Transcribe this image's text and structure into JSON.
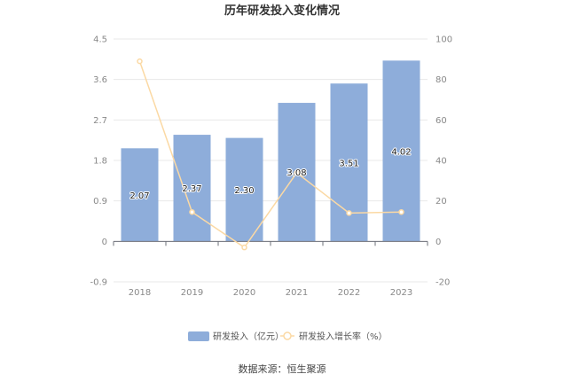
{
  "chart_data": {
    "type": "bar",
    "title": "历年研发投入变化情况",
    "categories": [
      "2018",
      "2019",
      "2020",
      "2021",
      "2022",
      "2023"
    ],
    "series": [
      {
        "name": "研发投入（亿元）",
        "kind": "bar",
        "axis": "left",
        "color": "#8eadda",
        "values": [
          2.07,
          2.37,
          2.3,
          3.08,
          3.51,
          4.02
        ],
        "labels": [
          "2.07",
          "2.37",
          "2.30",
          "3.08",
          "3.51",
          "4.02"
        ]
      },
      {
        "name": "研发投入增长率（%）",
        "kind": "line",
        "axis": "right",
        "color": "#fbd9a4",
        "values": [
          89,
          14.5,
          -3,
          33.9,
          14,
          14.5
        ]
      }
    ],
    "y_left": {
      "min": -0.9,
      "max": 4.5,
      "ticks": [
        "-0.9",
        "0",
        "0.9",
        "1.8",
        "2.7",
        "3.6",
        "4.5"
      ]
    },
    "y_right": {
      "min": -20,
      "max": 100,
      "ticks": [
        "-20",
        "0",
        "20",
        "40",
        "60",
        "80",
        "100"
      ]
    },
    "grid": true,
    "legend_position": "bottom",
    "source": "数据来源：恒生聚源"
  }
}
